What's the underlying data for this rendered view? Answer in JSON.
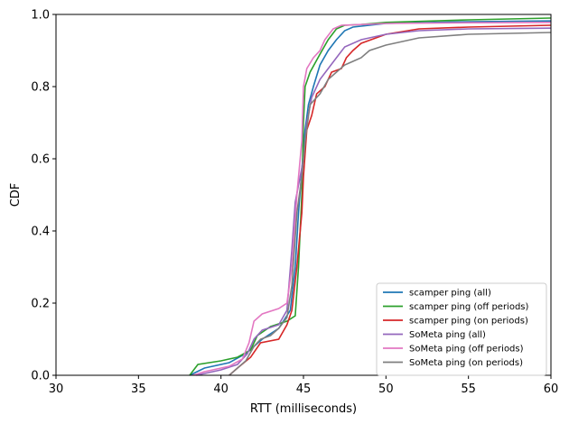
{
  "chart_data": {
    "type": "line",
    "title": "",
    "xlabel": "RTT (milliseconds)",
    "ylabel": "CDF",
    "xlim": [
      30,
      60
    ],
    "ylim": [
      0,
      1
    ],
    "xticks": [
      30,
      35,
      40,
      45,
      50,
      55,
      60
    ],
    "yticks": [
      0.0,
      0.2,
      0.4,
      0.6,
      0.8,
      1.0
    ],
    "xtick_labels": [
      "30",
      "35",
      "40",
      "45",
      "50",
      "55",
      "60"
    ],
    "ytick_labels": [
      "0.0",
      "0.2",
      "0.4",
      "0.6",
      "0.8",
      "1.0"
    ],
    "grid": false,
    "legend_position": "lower-right",
    "series": [
      {
        "name": "scamper ping (all)",
        "color": "#1f77b4",
        "points": [
          [
            38.1,
            0.0
          ],
          [
            39.0,
            0.02
          ],
          [
            40.5,
            0.035
          ],
          [
            41.5,
            0.06
          ],
          [
            42.5,
            0.1
          ],
          [
            43.5,
            0.13
          ],
          [
            44.2,
            0.18
          ],
          [
            44.5,
            0.3
          ],
          [
            44.7,
            0.45
          ],
          [
            44.9,
            0.57
          ],
          [
            45.1,
            0.68
          ],
          [
            45.3,
            0.75
          ],
          [
            45.6,
            0.8
          ],
          [
            46.0,
            0.86
          ],
          [
            46.5,
            0.9
          ],
          [
            47.0,
            0.93
          ],
          [
            47.5,
            0.955
          ],
          [
            48.0,
            0.965
          ],
          [
            50.0,
            0.975
          ],
          [
            55.0,
            0.98
          ],
          [
            60.0,
            0.982
          ]
        ]
      },
      {
        "name": "scamper ping (off periods)",
        "color": "#2ca02c",
        "points": [
          [
            38.1,
            0.0
          ],
          [
            38.6,
            0.03
          ],
          [
            40.0,
            0.04
          ],
          [
            41.0,
            0.05
          ],
          [
            41.8,
            0.07
          ],
          [
            42.2,
            0.11
          ],
          [
            43.0,
            0.135
          ],
          [
            44.0,
            0.15
          ],
          [
            44.5,
            0.165
          ],
          [
            44.7,
            0.3
          ],
          [
            44.9,
            0.5
          ],
          [
            45.0,
            0.7
          ],
          [
            45.1,
            0.8
          ],
          [
            45.4,
            0.84
          ],
          [
            46.0,
            0.89
          ],
          [
            46.5,
            0.93
          ],
          [
            47.0,
            0.96
          ],
          [
            47.5,
            0.97
          ],
          [
            48.5,
            0.972
          ],
          [
            50.0,
            0.978
          ],
          [
            55.0,
            0.985
          ],
          [
            60.0,
            0.99
          ]
        ]
      },
      {
        "name": "scamper ping (on periods)",
        "color": "#d62728",
        "points": [
          [
            40.5,
            0.0
          ],
          [
            41.0,
            0.02
          ],
          [
            41.8,
            0.05
          ],
          [
            42.4,
            0.09
          ],
          [
            43.5,
            0.1
          ],
          [
            44.0,
            0.14
          ],
          [
            44.3,
            0.18
          ],
          [
            44.6,
            0.3
          ],
          [
            44.9,
            0.45
          ],
          [
            45.0,
            0.55
          ],
          [
            45.2,
            0.68
          ],
          [
            45.5,
            0.72
          ],
          [
            45.8,
            0.78
          ],
          [
            46.3,
            0.8
          ],
          [
            46.7,
            0.84
          ],
          [
            47.3,
            0.85
          ],
          [
            47.6,
            0.88
          ],
          [
            48.0,
            0.9
          ],
          [
            48.5,
            0.92
          ],
          [
            50.0,
            0.945
          ],
          [
            52.0,
            0.96
          ],
          [
            55.0,
            0.965
          ],
          [
            60.0,
            0.97
          ]
        ]
      },
      {
        "name": "SoMeta ping (all)",
        "color": "#9467bd",
        "points": [
          [
            38.5,
            0.0
          ],
          [
            40.0,
            0.015
          ],
          [
            41.0,
            0.03
          ],
          [
            41.6,
            0.06
          ],
          [
            42.0,
            0.1
          ],
          [
            42.5,
            0.125
          ],
          [
            43.5,
            0.14
          ],
          [
            44.0,
            0.18
          ],
          [
            44.3,
            0.35
          ],
          [
            44.5,
            0.48
          ],
          [
            44.8,
            0.55
          ],
          [
            45.0,
            0.6
          ],
          [
            45.2,
            0.7
          ],
          [
            45.5,
            0.77
          ],
          [
            46.0,
            0.82
          ],
          [
            46.5,
            0.85
          ],
          [
            47.0,
            0.88
          ],
          [
            47.5,
            0.91
          ],
          [
            48.5,
            0.93
          ],
          [
            50.0,
            0.945
          ],
          [
            52.0,
            0.955
          ],
          [
            55.0,
            0.96
          ],
          [
            60.0,
            0.962
          ]
        ]
      },
      {
        "name": "SoMeta ping (off periods)",
        "color": "#e377c2",
        "points": [
          [
            38.3,
            0.0
          ],
          [
            39.0,
            0.01
          ],
          [
            40.5,
            0.025
          ],
          [
            41.3,
            0.045
          ],
          [
            41.7,
            0.09
          ],
          [
            42.0,
            0.15
          ],
          [
            42.5,
            0.17
          ],
          [
            43.5,
            0.185
          ],
          [
            44.0,
            0.2
          ],
          [
            44.3,
            0.3
          ],
          [
            44.6,
            0.5
          ],
          [
            44.9,
            0.65
          ],
          [
            45.0,
            0.8
          ],
          [
            45.2,
            0.85
          ],
          [
            45.6,
            0.88
          ],
          [
            46.0,
            0.9
          ],
          [
            46.3,
            0.93
          ],
          [
            46.8,
            0.96
          ],
          [
            47.3,
            0.97
          ],
          [
            48.5,
            0.972
          ],
          [
            50.0,
            0.975
          ],
          [
            55.0,
            0.977
          ],
          [
            60.0,
            0.978
          ]
        ]
      },
      {
        "name": "SoMeta ping (on periods)",
        "color": "#7f7f7f",
        "points": [
          [
            40.5,
            0.0
          ],
          [
            41.5,
            0.04
          ],
          [
            42.0,
            0.08
          ],
          [
            42.4,
            0.1
          ],
          [
            43.0,
            0.11
          ],
          [
            43.5,
            0.13
          ],
          [
            44.0,
            0.16
          ],
          [
            44.3,
            0.25
          ],
          [
            44.6,
            0.45
          ],
          [
            44.9,
            0.55
          ],
          [
            45.1,
            0.65
          ],
          [
            45.4,
            0.75
          ],
          [
            46.0,
            0.78
          ],
          [
            46.5,
            0.82
          ],
          [
            47.0,
            0.84
          ],
          [
            47.5,
            0.86
          ],
          [
            48.0,
            0.87
          ],
          [
            48.5,
            0.88
          ],
          [
            49.0,
            0.9
          ],
          [
            50.0,
            0.915
          ],
          [
            52.0,
            0.935
          ],
          [
            55.0,
            0.945
          ],
          [
            60.0,
            0.95
          ]
        ]
      }
    ]
  }
}
